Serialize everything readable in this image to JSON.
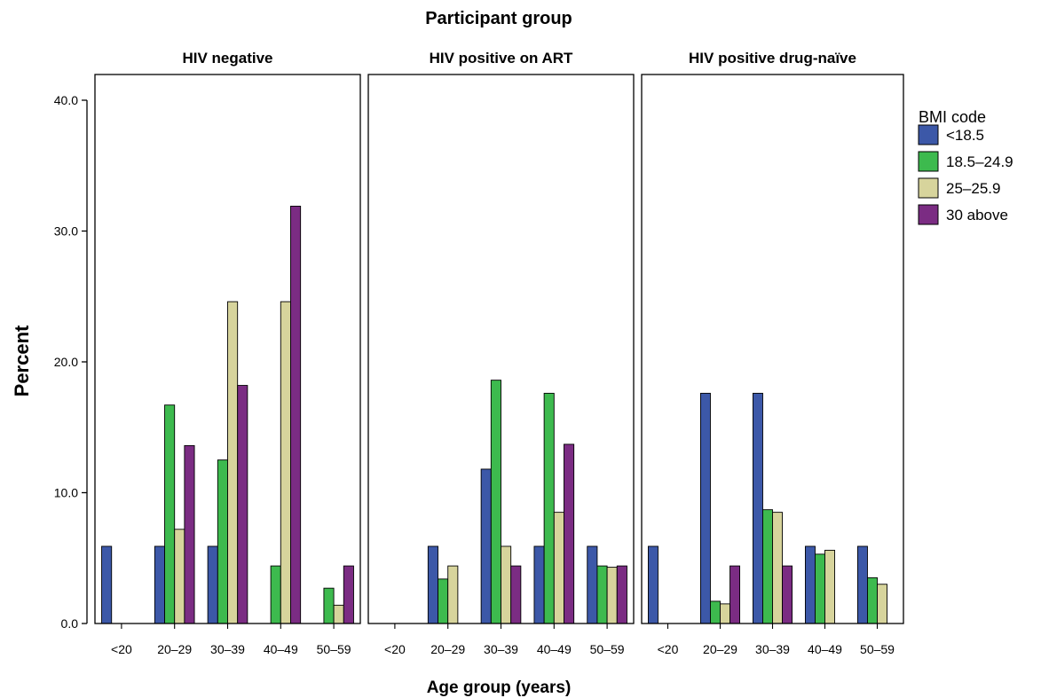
{
  "chart_data": {
    "type": "bar",
    "title": "Participant group",
    "xlabel": "Age group (years)",
    "ylabel": "Percent",
    "ylim": [
      0,
      40
    ],
    "yticks": [
      "0.0",
      "10.0",
      "20.0",
      "30.0",
      "40.0"
    ],
    "categories": [
      "<20",
      "20–29",
      "30–39",
      "40–49",
      "50–59"
    ],
    "legend": {
      "title": "BMI code",
      "placement": "right",
      "items": [
        {
          "name": "<18.5",
          "color": "#3c58a8"
        },
        {
          "name": "18.5–24.9",
          "color": "#3dba4e"
        },
        {
          "name": "25–25.9",
          "color": "#d7d49c"
        },
        {
          "name": "30 above",
          "color": "#7b2c83"
        }
      ]
    },
    "panels": [
      {
        "title": "HIV negative",
        "series": [
          {
            "name": "<18.5",
            "values": [
              5.9,
              5.9,
              5.9,
              0,
              0
            ]
          },
          {
            "name": "18.5–24.9",
            "values": [
              0,
              16.7,
              12.5,
              4.4,
              2.7
            ]
          },
          {
            "name": "25–25.9",
            "values": [
              0,
              7.2,
              24.6,
              24.6,
              1.4
            ]
          },
          {
            "name": "30 above",
            "values": [
              0,
              13.6,
              18.2,
              31.9,
              4.4
            ]
          }
        ]
      },
      {
        "title": "HIV positive on ART",
        "series": [
          {
            "name": "<18.5",
            "values": [
              0,
              5.9,
              11.8,
              5.9,
              5.9
            ]
          },
          {
            "name": "18.5–24.9",
            "values": [
              0,
              3.4,
              18.6,
              17.6,
              4.4
            ]
          },
          {
            "name": "25–25.9",
            "values": [
              0,
              4.4,
              5.9,
              8.5,
              4.3
            ]
          },
          {
            "name": "30 above",
            "values": [
              0,
              0,
              4.4,
              13.7,
              4.4
            ]
          }
        ]
      },
      {
        "title": "HIV positive drug-naïve",
        "series": [
          {
            "name": "<18.5",
            "values": [
              5.9,
              17.6,
              17.6,
              5.9,
              5.9
            ]
          },
          {
            "name": "18.5–24.9",
            "values": [
              0,
              1.7,
              8.7,
              5.3,
              3.5
            ]
          },
          {
            "name": "25–25.9",
            "values": [
              0,
              1.5,
              8.5,
              5.6,
              3.0
            ]
          },
          {
            "name": "30 above",
            "values": [
              0,
              4.4,
              4.4,
              0,
              0
            ]
          }
        ]
      }
    ]
  }
}
